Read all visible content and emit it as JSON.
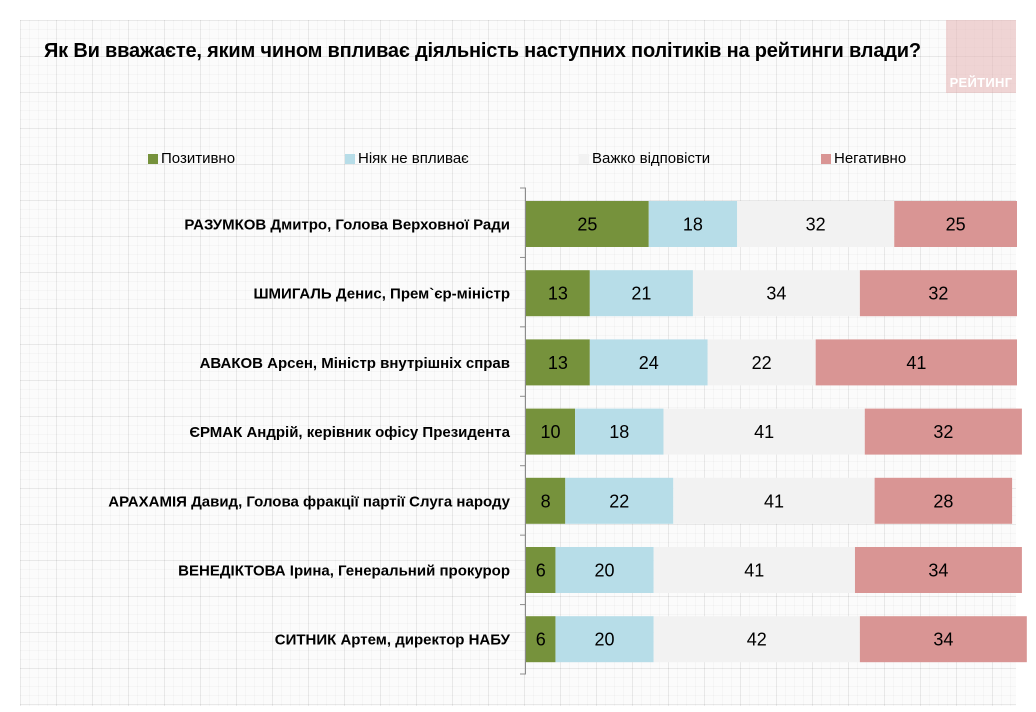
{
  "chart_data": {
    "type": "bar",
    "orientation": "horizontal",
    "stacked": true,
    "percent": true,
    "title": "Як Ви вважаєте, яким чином впливає діяльність наступних політиків на рейтинги влади?",
    "xlabel": "",
    "ylabel": "",
    "xlim": [
      0,
      100
    ],
    "grid": false,
    "legend_position": "top",
    "categories": [
      "РАЗУМКОВ Дмитро, Голова Верховної Ради",
      "ШМИГАЛЬ Денис, Прем`єр-міністр",
      "АВАКОВ Арсен, Міністр внутрішніх справ",
      "ЄРМАК Андрій, керівник офісу Президента",
      "АРАХАМІЯ Давид, Голова фракції партії Слуга народу",
      "ВЕНЕДІКТОВА Ірина, Генеральний прокурор",
      "СИТНИК Артем, директор  НАБУ"
    ],
    "series": [
      {
        "name": "Позитивно",
        "color": "#76923c",
        "values": [
          25,
          13,
          13,
          10,
          8,
          6,
          6
        ]
      },
      {
        "name": "Ніяк не впливає",
        "color": "#b7dde8",
        "values": [
          18,
          21,
          24,
          18,
          22,
          20,
          20
        ]
      },
      {
        "name": "Важко відповісти",
        "color": "#f2f2f2",
        "values": [
          32,
          34,
          22,
          41,
          41,
          41,
          42
        ]
      },
      {
        "name": "Негативно",
        "color": "#d99594",
        "values": [
          25,
          32,
          41,
          32,
          28,
          34,
          34
        ]
      }
    ]
  },
  "logo": {
    "text": "РЕЙТИНГ"
  }
}
